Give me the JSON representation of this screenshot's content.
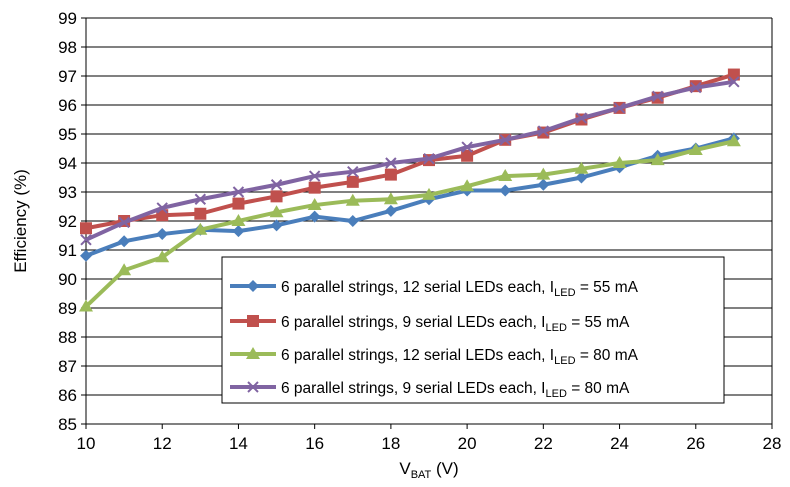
{
  "chart_data": {
    "type": "line",
    "xlabel": {
      "main": "V",
      "sub": "BAT",
      "rest": " (V)"
    },
    "ylabel": "Efficiency (%)",
    "xlim": [
      10,
      28
    ],
    "ylim": [
      85,
      99
    ],
    "x_ticks": [
      "10",
      "12",
      "14",
      "16",
      "18",
      "20",
      "22",
      "24",
      "26",
      "28"
    ],
    "y_ticks": [
      "85",
      "86",
      "87",
      "88",
      "89",
      "90",
      "91",
      "92",
      "93",
      "94",
      "95",
      "96",
      "97",
      "98",
      "99"
    ],
    "grid": "horizontal",
    "legend_position": "bottom-right",
    "x": [
      10,
      11,
      12,
      13,
      14,
      15,
      16,
      17,
      18,
      19,
      20,
      21,
      22,
      23,
      24,
      25,
      26,
      27
    ],
    "series": [
      {
        "label_pre": "6 parallel strings, 12 serial LEDs each, I",
        "label_sub": "LED",
        "label_post": " = 55 mA",
        "color": "#4a7ebb",
        "marker": "diamond",
        "values": [
          90.8,
          91.3,
          91.55,
          91.7,
          91.65,
          91.85,
          92.15,
          92.0,
          92.35,
          92.75,
          93.05,
          93.05,
          93.25,
          93.5,
          93.85,
          94.25,
          94.5,
          94.85
        ]
      },
      {
        "label_pre": "6 parallel strings,   9 serial LEDs each, I",
        "label_sub": "LED",
        "label_post": " = 55 mA",
        "color": "#c0504d",
        "marker": "square",
        "values": [
          91.75,
          92.0,
          92.2,
          92.25,
          92.6,
          92.85,
          93.15,
          93.35,
          93.6,
          94.1,
          94.25,
          94.8,
          95.05,
          95.5,
          95.9,
          96.25,
          96.65,
          97.05
        ]
      },
      {
        "label_pre": "6 parallel strings, 12 serial LEDs each, I",
        "label_sub": "LED",
        "label_post": " = 80 mA",
        "color": "#9bbb59",
        "marker": "triangle",
        "values": [
          89.05,
          90.3,
          90.75,
          91.7,
          92.0,
          92.3,
          92.55,
          92.7,
          92.75,
          92.9,
          93.2,
          93.55,
          93.6,
          93.8,
          94.0,
          94.1,
          94.45,
          94.75
        ]
      },
      {
        "label_pre": "6 parallel strings,   9 serial LEDs each, I",
        "label_sub": "LED",
        "label_post": " = 80 mA",
        "color": "#8064a2",
        "marker": "x",
        "values": [
          91.35,
          91.95,
          92.45,
          92.75,
          93.0,
          93.25,
          93.55,
          93.7,
          94.0,
          94.15,
          94.55,
          94.8,
          95.1,
          95.55,
          95.9,
          96.3,
          96.6,
          96.8
        ]
      }
    ]
  }
}
